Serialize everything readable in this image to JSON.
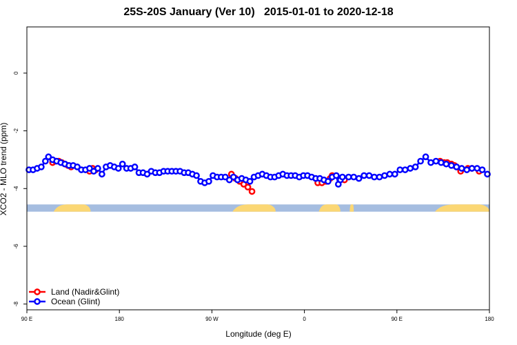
{
  "chart_data": {
    "type": "scatter",
    "title": "25S-20S January (Ver 10)   2015-01-01 to 2020-12-18",
    "xlabel": "Longitude (deg E)",
    "ylabel": "XCO2 - MLO trend (ppm)",
    "xlim": [
      90,
      540
    ],
    "ylim": [
      -8.2,
      1.6
    ],
    "grid": false,
    "legend_position": "bottom-left",
    "x_ticks": [
      {
        "value": 90,
        "label": "90 E"
      },
      {
        "value": 180,
        "label": "180"
      },
      {
        "value": 270,
        "label": "90 W"
      },
      {
        "value": 360,
        "label": "0"
      },
      {
        "value": 450,
        "label": "90 E"
      },
      {
        "value": 540,
        "label": "180"
      }
    ],
    "y_ticks": [
      {
        "value": 0,
        "label": "0"
      },
      {
        "value": -2,
        "label": "-2"
      },
      {
        "value": -4,
        "label": "-4"
      },
      {
        "value": -6,
        "label": "-6"
      },
      {
        "value": -8,
        "label": "-8"
      }
    ],
    "surface_band": {
      "y_top": -4.55,
      "y_bottom": -4.8,
      "ocean_color": "#a5bde0",
      "land_color": "#fbd774",
      "land_ranges": [
        [
          116,
          152
        ],
        [
          290,
          332
        ],
        [
          374,
          395
        ],
        [
          404,
          408
        ],
        [
          487,
          548
        ]
      ]
    },
    "series": [
      {
        "name": "Land (Nadir&Glint)",
        "color": "#ff0000",
        "points": [
          [
            115,
            -3.1
          ],
          [
            118,
            -3.05
          ],
          [
            121,
            -3.05
          ],
          [
            124,
            -3.1
          ],
          [
            127,
            -3.15
          ],
          [
            130,
            -3.2
          ],
          [
            133,
            -3.25
          ],
          [
            151,
            -3.4
          ],
          [
            154,
            -3.3
          ],
          [
            157,
            -3.35
          ],
          [
            289,
            -3.5
          ],
          [
            293,
            -3.65
          ],
          [
            297,
            -3.75
          ],
          [
            301,
            -3.85
          ],
          [
            305,
            -3.95
          ],
          [
            309,
            -4.1
          ],
          [
            373,
            -3.8
          ],
          [
            377,
            -3.8
          ],
          [
            381,
            -3.75
          ],
          [
            385,
            -3.65
          ],
          [
            387,
            -3.55
          ],
          [
            399,
            -3.7
          ],
          [
            492,
            -3.05
          ],
          [
            496,
            -3.1
          ],
          [
            499,
            -3.1
          ],
          [
            503,
            -3.15
          ],
          [
            506,
            -3.2
          ],
          [
            508,
            -3.25
          ],
          [
            512,
            -3.4
          ],
          [
            519,
            -3.3
          ],
          [
            523,
            -3.3
          ],
          [
            530,
            -3.4
          ]
        ]
      },
      {
        "name": "Ocean (Glint)",
        "color": "#0000ff",
        "points": [
          [
            92,
            -3.35
          ],
          [
            96,
            -3.35
          ],
          [
            100,
            -3.3
          ],
          [
            104,
            -3.25
          ],
          [
            108,
            -3.05
          ],
          [
            111,
            -2.9
          ],
          [
            115,
            -3.0
          ],
          [
            119,
            -3.05
          ],
          [
            123,
            -3.1
          ],
          [
            127,
            -3.15
          ],
          [
            131,
            -3.2
          ],
          [
            135,
            -3.2
          ],
          [
            139,
            -3.25
          ],
          [
            143,
            -3.35
          ],
          [
            147,
            -3.35
          ],
          [
            151,
            -3.3
          ],
          [
            155,
            -3.4
          ],
          [
            159,
            -3.3
          ],
          [
            163,
            -3.5
          ],
          [
            167,
            -3.25
          ],
          [
            171,
            -3.2
          ],
          [
            175,
            -3.25
          ],
          [
            179,
            -3.3
          ],
          [
            183,
            -3.15
          ],
          [
            187,
            -3.3
          ],
          [
            191,
            -3.3
          ],
          [
            195,
            -3.25
          ],
          [
            199,
            -3.45
          ],
          [
            203,
            -3.45
          ],
          [
            207,
            -3.5
          ],
          [
            211,
            -3.4
          ],
          [
            215,
            -3.45
          ],
          [
            219,
            -3.45
          ],
          [
            223,
            -3.4
          ],
          [
            227,
            -3.4
          ],
          [
            231,
            -3.4
          ],
          [
            235,
            -3.4
          ],
          [
            239,
            -3.4
          ],
          [
            243,
            -3.45
          ],
          [
            247,
            -3.45
          ],
          [
            251,
            -3.5
          ],
          [
            255,
            -3.55
          ],
          [
            259,
            -3.75
          ],
          [
            263,
            -3.8
          ],
          [
            267,
            -3.75
          ],
          [
            271,
            -3.55
          ],
          [
            275,
            -3.6
          ],
          [
            279,
            -3.6
          ],
          [
            283,
            -3.6
          ],
          [
            287,
            -3.7
          ],
          [
            291,
            -3.6
          ],
          [
            295,
            -3.7
          ],
          [
            299,
            -3.65
          ],
          [
            303,
            -3.7
          ],
          [
            307,
            -3.75
          ],
          [
            311,
            -3.6
          ],
          [
            315,
            -3.55
          ],
          [
            319,
            -3.5
          ],
          [
            323,
            -3.55
          ],
          [
            327,
            -3.6
          ],
          [
            331,
            -3.6
          ],
          [
            335,
            -3.55
          ],
          [
            339,
            -3.5
          ],
          [
            343,
            -3.55
          ],
          [
            347,
            -3.55
          ],
          [
            351,
            -3.55
          ],
          [
            355,
            -3.6
          ],
          [
            359,
            -3.55
          ],
          [
            363,
            -3.55
          ],
          [
            367,
            -3.6
          ],
          [
            371,
            -3.65
          ],
          [
            375,
            -3.65
          ],
          [
            379,
            -3.7
          ],
          [
            383,
            -3.75
          ],
          [
            387,
            -3.6
          ],
          [
            391,
            -3.55
          ],
          [
            393,
            -3.85
          ],
          [
            395,
            -3.7
          ],
          [
            397,
            -3.6
          ],
          [
            403,
            -3.6
          ],
          [
            408,
            -3.6
          ],
          [
            413,
            -3.65
          ],
          [
            418,
            -3.55
          ],
          [
            423,
            -3.55
          ],
          [
            428,
            -3.6
          ],
          [
            433,
            -3.6
          ],
          [
            438,
            -3.55
          ],
          [
            443,
            -3.5
          ],
          [
            448,
            -3.5
          ],
          [
            453,
            -3.35
          ],
          [
            458,
            -3.35
          ],
          [
            463,
            -3.3
          ],
          [
            468,
            -3.25
          ],
          [
            473,
            -3.05
          ],
          [
            478,
            -2.9
          ],
          [
            483,
            -3.1
          ],
          [
            488,
            -3.05
          ],
          [
            493,
            -3.1
          ],
          [
            498,
            -3.15
          ],
          [
            503,
            -3.2
          ],
          [
            508,
            -3.25
          ],
          [
            513,
            -3.3
          ],
          [
            518,
            -3.35
          ],
          [
            523,
            -3.3
          ],
          [
            528,
            -3.3
          ],
          [
            533,
            -3.35
          ],
          [
            538,
            -3.5
          ]
        ]
      }
    ]
  }
}
